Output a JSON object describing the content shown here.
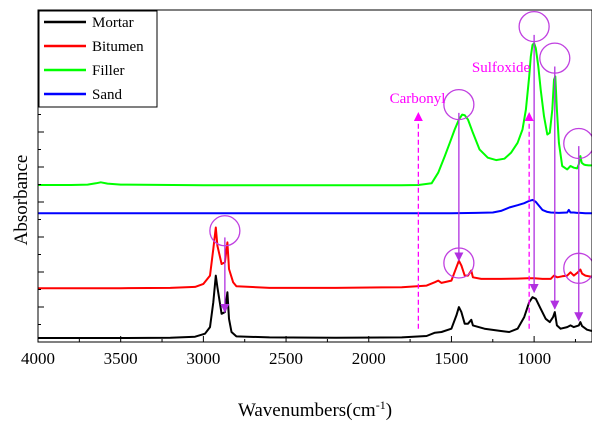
{
  "chart_data": {
    "type": "line",
    "xlabel_main": "Wavenumbers(cm",
    "xlabel_sup": "-1",
    "xlabel_end": ")",
    "ylabel": "Absorbance",
    "xlim": [
      4000,
      650
    ],
    "x_reversed": true,
    "ylim": [
      0,
      1
    ],
    "y_ticklabels_shown": false,
    "x_ticks": [
      "4000",
      "3500",
      "3000",
      "2500",
      "2000",
      "1500",
      "1000"
    ],
    "legend_position": "top-left",
    "grid": false,
    "series": [
      {
        "name": "Mortar",
        "color": "#000000",
        "points": [
          [
            4000,
            0.012
          ],
          [
            3500,
            0.012
          ],
          [
            3200,
            0.013
          ],
          [
            3050,
            0.016
          ],
          [
            2990,
            0.025
          ],
          [
            2960,
            0.045
          ],
          [
            2940,
            0.12
          ],
          [
            2925,
            0.2
          ],
          [
            2915,
            0.165
          ],
          [
            2890,
            0.085
          ],
          [
            2870,
            0.09
          ],
          [
            2855,
            0.15
          ],
          [
            2845,
            0.07
          ],
          [
            2830,
            0.03
          ],
          [
            2800,
            0.017
          ],
          [
            2600,
            0.014
          ],
          [
            2200,
            0.013
          ],
          [
            1800,
            0.014
          ],
          [
            1650,
            0.018
          ],
          [
            1600,
            0.028
          ],
          [
            1560,
            0.03
          ],
          [
            1500,
            0.04
          ],
          [
            1470,
            0.08
          ],
          [
            1455,
            0.105
          ],
          [
            1440,
            0.09
          ],
          [
            1420,
            0.055
          ],
          [
            1400,
            0.055
          ],
          [
            1380,
            0.067
          ],
          [
            1370,
            0.05
          ],
          [
            1300,
            0.04
          ],
          [
            1200,
            0.033
          ],
          [
            1150,
            0.03
          ],
          [
            1100,
            0.04
          ],
          [
            1060,
            0.075
          ],
          [
            1030,
            0.12
          ],
          [
            1010,
            0.135
          ],
          [
            990,
            0.13
          ],
          [
            960,
            0.1
          ],
          [
            930,
            0.07
          ],
          [
            905,
            0.06
          ],
          [
            885,
            0.075
          ],
          [
            875,
            0.09
          ],
          [
            862,
            0.05
          ],
          [
            840,
            0.04
          ],
          [
            800,
            0.045
          ],
          [
            780,
            0.05
          ],
          [
            760,
            0.045
          ],
          [
            730,
            0.05
          ],
          [
            720,
            0.06
          ],
          [
            710,
            0.048
          ],
          [
            680,
            0.037
          ],
          [
            650,
            0.033
          ]
        ]
      },
      {
        "name": "Bitumen",
        "color": "#ff0000",
        "points": [
          [
            4000,
            0.162
          ],
          [
            3500,
            0.162
          ],
          [
            3200,
            0.163
          ],
          [
            3050,
            0.166
          ],
          [
            3000,
            0.175
          ],
          [
            2960,
            0.2
          ],
          [
            2940,
            0.28
          ],
          [
            2925,
            0.345
          ],
          [
            2915,
            0.29
          ],
          [
            2890,
            0.235
          ],
          [
            2870,
            0.24
          ],
          [
            2855,
            0.3
          ],
          [
            2845,
            0.22
          ],
          [
            2820,
            0.18
          ],
          [
            2800,
            0.168
          ],
          [
            2600,
            0.163
          ],
          [
            2200,
            0.163
          ],
          [
            1800,
            0.165
          ],
          [
            1650,
            0.17
          ],
          [
            1600,
            0.18
          ],
          [
            1580,
            0.185
          ],
          [
            1560,
            0.178
          ],
          [
            1500,
            0.185
          ],
          [
            1470,
            0.225
          ],
          [
            1455,
            0.245
          ],
          [
            1440,
            0.23
          ],
          [
            1420,
            0.2
          ],
          [
            1400,
            0.2
          ],
          [
            1380,
            0.215
          ],
          [
            1370,
            0.195
          ],
          [
            1320,
            0.19
          ],
          [
            1200,
            0.19
          ],
          [
            1100,
            0.191
          ],
          [
            1040,
            0.192
          ],
          [
            1000,
            0.192
          ],
          [
            950,
            0.19
          ],
          [
            900,
            0.19
          ],
          [
            880,
            0.2
          ],
          [
            860,
            0.195
          ],
          [
            830,
            0.198
          ],
          [
            800,
            0.2
          ],
          [
            780,
            0.21
          ],
          [
            760,
            0.2
          ],
          [
            735,
            0.21
          ],
          [
            720,
            0.218
          ],
          [
            710,
            0.206
          ],
          [
            690,
            0.2
          ],
          [
            650,
            0.196
          ]
        ]
      },
      {
        "name": "Filler",
        "color": "#00ff00",
        "points": [
          [
            4000,
            0.473
          ],
          [
            3800,
            0.473
          ],
          [
            3700,
            0.474
          ],
          [
            3650,
            0.478
          ],
          [
            3620,
            0.481
          ],
          [
            3580,
            0.477
          ],
          [
            3500,
            0.474
          ],
          [
            3000,
            0.472
          ],
          [
            2500,
            0.472
          ],
          [
            2000,
            0.472
          ],
          [
            1800,
            0.472
          ],
          [
            1700,
            0.473
          ],
          [
            1620,
            0.478
          ],
          [
            1580,
            0.51
          ],
          [
            1540,
            0.56
          ],
          [
            1510,
            0.6
          ],
          [
            1480,
            0.64
          ],
          [
            1455,
            0.67
          ],
          [
            1435,
            0.685
          ],
          [
            1420,
            0.683
          ],
          [
            1400,
            0.67
          ],
          [
            1370,
            0.63
          ],
          [
            1330,
            0.58
          ],
          [
            1280,
            0.555
          ],
          [
            1230,
            0.548
          ],
          [
            1180,
            0.552
          ],
          [
            1140,
            0.57
          ],
          [
            1100,
            0.6
          ],
          [
            1070,
            0.64
          ],
          [
            1050,
            0.7
          ],
          [
            1030,
            0.8
          ],
          [
            1020,
            0.86
          ],
          [
            1010,
            0.895
          ],
          [
            1000,
            0.9
          ],
          [
            990,
            0.885
          ],
          [
            975,
            0.83
          ],
          [
            960,
            0.76
          ],
          [
            940,
            0.68
          ],
          [
            920,
            0.625
          ],
          [
            905,
            0.63
          ],
          [
            890,
            0.7
          ],
          [
            880,
            0.79
          ],
          [
            872,
            0.8
          ],
          [
            862,
            0.7
          ],
          [
            850,
            0.6
          ],
          [
            830,
            0.53
          ],
          [
            800,
            0.52
          ],
          [
            780,
            0.53
          ],
          [
            760,
            0.525
          ],
          [
            740,
            0.523
          ],
          [
            730,
            0.535
          ],
          [
            725,
            0.55
          ],
          [
            720,
            0.56
          ],
          [
            712,
            0.54
          ],
          [
            700,
            0.535
          ],
          [
            690,
            0.533
          ],
          [
            670,
            0.532
          ],
          [
            650,
            0.532
          ]
        ]
      },
      {
        "name": "Sand",
        "color": "#0000ff",
        "points": [
          [
            4000,
            0.388
          ],
          [
            3000,
            0.388
          ],
          [
            2500,
            0.388
          ],
          [
            2000,
            0.388
          ],
          [
            1500,
            0.388
          ],
          [
            1350,
            0.389
          ],
          [
            1250,
            0.39
          ],
          [
            1200,
            0.395
          ],
          [
            1150,
            0.405
          ],
          [
            1100,
            0.412
          ],
          [
            1060,
            0.418
          ],
          [
            1030,
            0.425
          ],
          [
            1010,
            0.428
          ],
          [
            990,
            0.422
          ],
          [
            970,
            0.41
          ],
          [
            950,
            0.398
          ],
          [
            920,
            0.392
          ],
          [
            900,
            0.39
          ],
          [
            850,
            0.389
          ],
          [
            800,
            0.39
          ],
          [
            790,
            0.398
          ],
          [
            780,
            0.39
          ],
          [
            760,
            0.39
          ],
          [
            740,
            0.389
          ],
          [
            720,
            0.389
          ],
          [
            690,
            0.388
          ],
          [
            650,
            0.388
          ]
        ]
      }
    ],
    "annotations": [
      {
        "text": "Carbonyl",
        "x": 1700,
        "color": "#ff00ff",
        "style": "dashed-arrow-up"
      },
      {
        "text": "Sulfoxide",
        "x": 1030,
        "color": "#ff00ff",
        "style": "dashed-arrow-up"
      }
    ],
    "highlight_circles": [
      {
        "x": 2870,
        "y": 0.335
      },
      {
        "x": 1455,
        "y": 0.715
      },
      {
        "x": 1455,
        "y": 0.238
      },
      {
        "x": 1000,
        "y": 0.95
      },
      {
        "x": 875,
        "y": 0.855
      },
      {
        "x": 730,
        "y": 0.598
      },
      {
        "x": 730,
        "y": 0.222
      }
    ],
    "peak_arrows": [
      {
        "x": 2870,
        "y_from": 0.315,
        "y_to": 0.09
      },
      {
        "x": 1455,
        "y_from": 0.69,
        "y_to": 0.245
      },
      {
        "x": 1000,
        "y_from": 0.925,
        "y_to": 0.15
      },
      {
        "x": 875,
        "y_from": 0.83,
        "y_to": 0.1
      },
      {
        "x": 730,
        "y_from": 0.59,
        "y_to": 0.065
      }
    ],
    "style": {
      "annotation_color": "#ff00ff",
      "circle_color": "#c040e0",
      "arrow_color": "#b030e0"
    }
  }
}
